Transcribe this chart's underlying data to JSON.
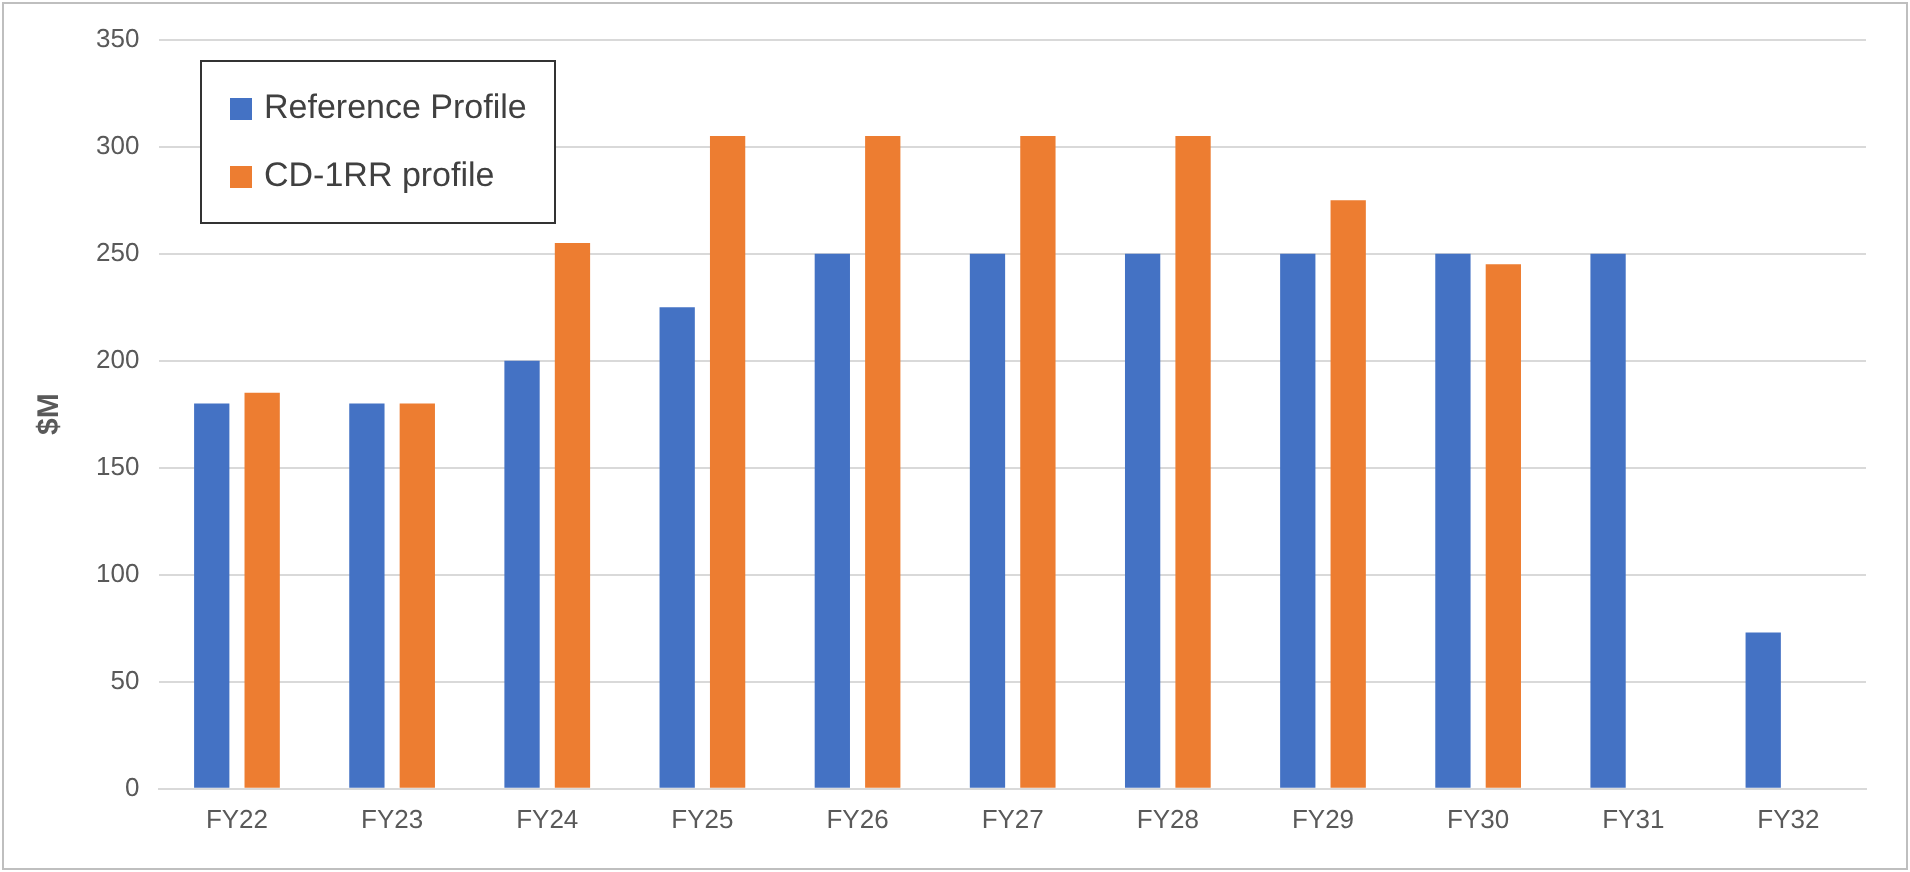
{
  "chart_data": {
    "type": "bar",
    "ylabel": "$M",
    "categories": [
      "FY22",
      "FY23",
      "FY24",
      "FY25",
      "FY26",
      "FY27",
      "FY28",
      "FY29",
      "FY30",
      "FY31",
      "FY32"
    ],
    "series": [
      {
        "name": "Reference Profile",
        "color": "#4472c4",
        "values": [
          180,
          180,
          200,
          225,
          250,
          250,
          250,
          250,
          250,
          250,
          73
        ]
      },
      {
        "name": "CD-1RR profile",
        "color": "#ed7d31",
        "values": [
          185,
          180,
          255,
          305,
          305,
          305,
          305,
          275,
          245,
          null,
          null
        ]
      }
    ],
    "ylim": [
      0,
      350
    ],
    "yticks": [
      0,
      50,
      100,
      150,
      200,
      250,
      300,
      350
    ],
    "grid": "y",
    "legend": "top left"
  }
}
